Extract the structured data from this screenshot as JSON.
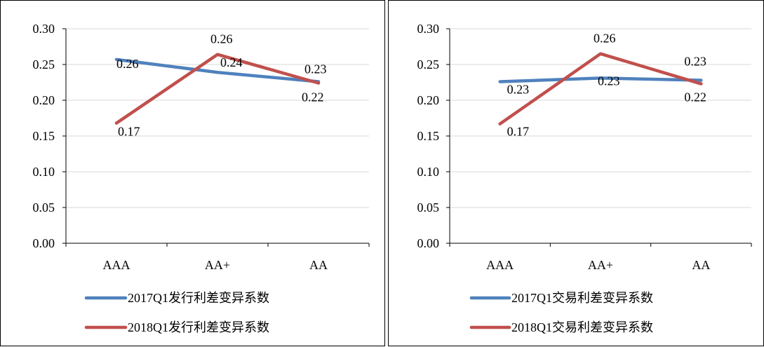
{
  "chart_data": [
    {
      "type": "line",
      "categories": [
        "AAA",
        "AA+",
        "AA"
      ],
      "ylim": [
        0,
        0.3
      ],
      "yticks": [
        "0.00",
        "0.05",
        "0.10",
        "0.15",
        "0.20",
        "0.25",
        "0.30"
      ],
      "grid": true,
      "legend_position": "bottom",
      "series": [
        {
          "name": "2017Q1发行利差变异系数",
          "color": "#4F81BD",
          "values": [
            0.257,
            0.239,
            0.226
          ],
          "labels": [
            "0.26",
            "0.24",
            "0.23"
          ]
        },
        {
          "name": "2018Q1发行利差变异系数",
          "color": "#C0504D",
          "values": [
            0.168,
            0.264,
            0.224
          ],
          "labels": [
            "0.17",
            "0.26",
            "0.22"
          ]
        }
      ]
    },
    {
      "type": "line",
      "categories": [
        "AAA",
        "AA+",
        "AA"
      ],
      "ylim": [
        0,
        0.3
      ],
      "yticks": [
        "0.00",
        "0.05",
        "0.10",
        "0.15",
        "0.20",
        "0.25",
        "0.30"
      ],
      "grid": true,
      "legend_position": "bottom",
      "series": [
        {
          "name": "2017Q1交易利差变异系数",
          "color": "#4F81BD",
          "values": [
            0.226,
            0.231,
            0.228
          ],
          "labels": [
            "0.23",
            "0.23",
            "0.23"
          ]
        },
        {
          "name": "2018Q1交易利差变异系数",
          "color": "#C0504D",
          "values": [
            0.167,
            0.265,
            0.223
          ],
          "labels": [
            "0.17",
            "0.26",
            "0.22"
          ]
        }
      ]
    }
  ]
}
